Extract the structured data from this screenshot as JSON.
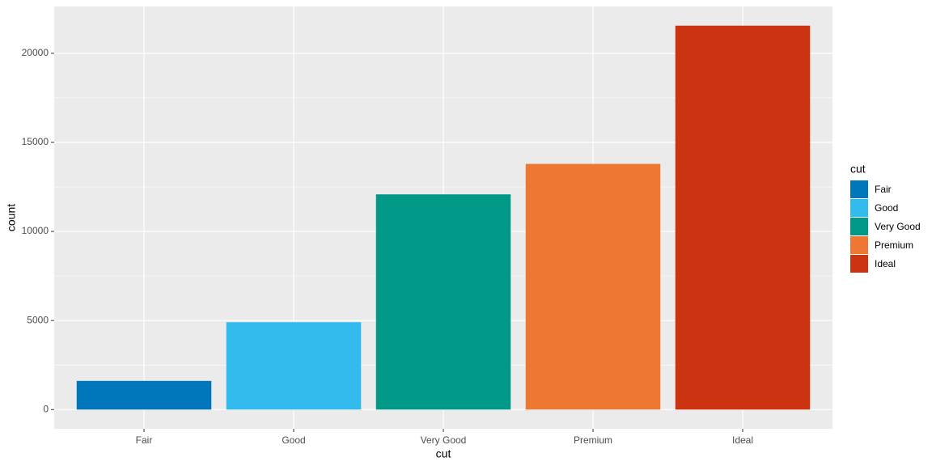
{
  "chart_data": {
    "type": "bar",
    "x_label": "cut",
    "y_label": "count",
    "legend_title": "cut",
    "categories": [
      "Fair",
      "Good",
      "Very Good",
      "Premium",
      "Ideal"
    ],
    "values": [
      1610,
      4906,
      12082,
      13791,
      21551
    ],
    "colors": [
      "#0077BB",
      "#33BBEE",
      "#009988",
      "#EE7733",
      "#CC3311"
    ],
    "ylim": [
      -1078,
      22629
    ],
    "yticks": [
      0,
      5000,
      10000,
      15000,
      20000
    ],
    "grid": true,
    "legend": "right"
  }
}
